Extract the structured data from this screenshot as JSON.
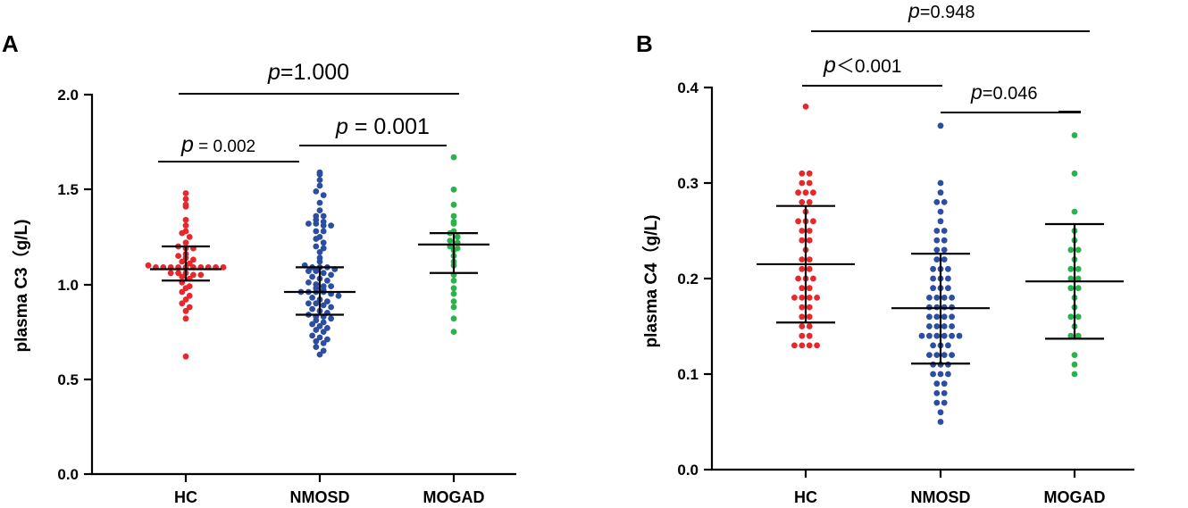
{
  "chart_data": [
    {
      "type": "scatter",
      "panel": "A",
      "ylabel": "plasma C3（g/L)",
      "ylim": [
        0,
        2.0
      ],
      "yticks": [
        "0.0",
        "0.5",
        "1.0",
        "1.5",
        "2.0"
      ],
      "categories": [
        "HC",
        "NMOSD",
        "MOGAD"
      ],
      "series": [
        {
          "name": "HC",
          "color": "#e8262b",
          "mean": 1.08,
          "sd_low": 1.02,
          "sd_high": 1.2,
          "values": [
            1.48,
            1.45,
            1.42,
            1.41,
            1.34,
            1.31,
            1.28,
            1.27,
            1.25,
            1.22,
            1.2,
            1.19,
            1.19,
            1.16,
            1.15,
            1.14,
            1.13,
            1.12,
            1.11,
            1.1,
            1.09,
            1.09,
            1.09,
            1.09,
            1.09,
            1.09,
            1.09,
            1.09,
            1.09,
            1.09,
            1.06,
            1.06,
            1.06,
            1.05,
            1.05,
            1.04,
            1.03,
            1.01,
            0.99,
            0.98,
            0.96,
            0.94,
            0.92,
            0.9,
            0.88,
            0.86,
            0.82,
            0.62
          ]
        },
        {
          "name": "NMOSD",
          "color": "#2b4ea2",
          "mean": 0.96,
          "sd_low": 0.84,
          "sd_high": 1.09,
          "values": [
            1.59,
            1.58,
            1.55,
            1.52,
            1.49,
            1.47,
            1.43,
            1.39,
            1.36,
            1.36,
            1.34,
            1.33,
            1.32,
            1.32,
            1.31,
            1.31,
            1.28,
            1.28,
            1.25,
            1.24,
            1.22,
            1.2,
            1.19,
            1.17,
            1.14,
            1.12,
            1.1,
            1.09,
            1.09,
            1.09,
            1.08,
            1.07,
            1.07,
            1.06,
            1.05,
            1.04,
            1.03,
            1.02,
            1.01,
            1.0,
            0.99,
            0.99,
            0.98,
            0.97,
            0.96,
            0.96,
            0.96,
            0.96,
            0.95,
            0.94,
            0.93,
            0.92,
            0.91,
            0.9,
            0.9,
            0.89,
            0.88,
            0.87,
            0.86,
            0.85,
            0.84,
            0.83,
            0.83,
            0.82,
            0.81,
            0.8,
            0.79,
            0.78,
            0.77,
            0.76,
            0.75,
            0.73,
            0.72,
            0.71,
            0.7,
            0.69,
            0.67,
            0.65,
            0.63
          ]
        },
        {
          "name": "MOGAD",
          "color": "#2ab34a",
          "mean": 1.21,
          "sd_low": 1.06,
          "sd_high": 1.27,
          "values": [
            1.67,
            1.5,
            1.42,
            1.36,
            1.33,
            1.32,
            1.28,
            1.27,
            1.25,
            1.23,
            1.22,
            1.2,
            1.19,
            1.18,
            1.15,
            1.12,
            1.1,
            1.05,
            1.02,
            0.98,
            0.95,
            0.91,
            0.88,
            0.82,
            0.75
          ]
        }
      ],
      "comparisons": [
        {
          "between": [
            "HC",
            "NMOSD"
          ],
          "p_label": "p",
          "p_text": " = 0.002"
        },
        {
          "between": [
            "NMOSD",
            "MOGAD"
          ],
          "p_label": "p",
          "p_text": " = 0.001"
        },
        {
          "between": [
            "HC",
            "MOGAD"
          ],
          "p_label": "p",
          "p_text": "=1.000"
        }
      ]
    },
    {
      "type": "scatter",
      "panel": "B",
      "ylabel": "plasma C4（g/L)",
      "ylim": [
        0,
        0.4
      ],
      "yticks": [
        "0.0",
        "0.1",
        "0.2",
        "0.3",
        "0.4"
      ],
      "categories": [
        "HC",
        "NMOSD",
        "MOGAD"
      ],
      "series": [
        {
          "name": "HC",
          "color": "#e8262b",
          "mean": 0.215,
          "sd_low": 0.154,
          "sd_high": 0.276,
          "values": [
            0.38,
            0.31,
            0.31,
            0.3,
            0.3,
            0.29,
            0.29,
            0.29,
            0.28,
            0.28,
            0.27,
            0.26,
            0.26,
            0.26,
            0.25,
            0.25,
            0.24,
            0.24,
            0.23,
            0.22,
            0.22,
            0.21,
            0.21,
            0.2,
            0.2,
            0.2,
            0.19,
            0.19,
            0.18,
            0.18,
            0.18,
            0.18,
            0.17,
            0.17,
            0.16,
            0.16,
            0.15,
            0.15,
            0.14,
            0.14,
            0.13,
            0.13,
            0.13,
            0.13
          ]
        },
        {
          "name": "NMOSD",
          "color": "#2b4ea2",
          "mean": 0.169,
          "sd_low": 0.111,
          "sd_high": 0.226,
          "values": [
            0.36,
            0.3,
            0.29,
            0.28,
            0.28,
            0.27,
            0.26,
            0.25,
            0.25,
            0.24,
            0.24,
            0.23,
            0.23,
            0.22,
            0.22,
            0.21,
            0.21,
            0.21,
            0.2,
            0.2,
            0.2,
            0.19,
            0.19,
            0.19,
            0.18,
            0.18,
            0.18,
            0.18,
            0.17,
            0.17,
            0.17,
            0.17,
            0.16,
            0.16,
            0.16,
            0.16,
            0.15,
            0.15,
            0.15,
            0.15,
            0.14,
            0.14,
            0.14,
            0.14,
            0.14,
            0.14,
            0.13,
            0.13,
            0.13,
            0.12,
            0.12,
            0.12,
            0.12,
            0.11,
            0.11,
            0.11,
            0.1,
            0.1,
            0.1,
            0.09,
            0.09,
            0.08,
            0.08,
            0.07,
            0.07,
            0.06,
            0.05
          ]
        },
        {
          "name": "MOGAD",
          "color": "#2ab34a",
          "mean": 0.197,
          "sd_low": 0.137,
          "sd_high": 0.257,
          "values": [
            0.35,
            0.31,
            0.27,
            0.25,
            0.24,
            0.23,
            0.23,
            0.22,
            0.21,
            0.21,
            0.2,
            0.2,
            0.19,
            0.19,
            0.18,
            0.17,
            0.16,
            0.16,
            0.15,
            0.14,
            0.14,
            0.12,
            0.11,
            0.1
          ]
        }
      ],
      "comparisons": [
        {
          "between": [
            "HC",
            "NMOSD"
          ],
          "p_label": "p",
          "p_text": "＜0.001"
        },
        {
          "between": [
            "NMOSD",
            "MOGAD"
          ],
          "p_label": "p",
          "p_text": "=0.046"
        },
        {
          "between": [
            "HC",
            "MOGAD"
          ],
          "p_label": "p",
          "p_text": "=0.948"
        }
      ]
    }
  ]
}
